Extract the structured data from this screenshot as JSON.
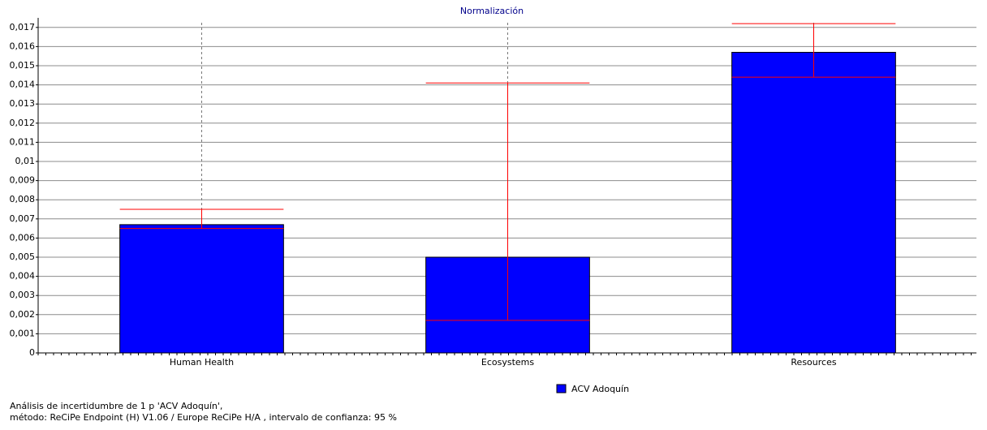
{
  "chart_data": {
    "type": "bar",
    "title": "Normalización",
    "categories": [
      "Human Health",
      "Ecosystems",
      "Resources"
    ],
    "series": [
      {
        "name": "ACV Adoquín",
        "color": "#0000ff",
        "values": [
          0.0067,
          0.005,
          0.0157
        ],
        "lower": [
          0.0065,
          0.0017,
          0.0144
        ],
        "upper": [
          0.0075,
          0.0141,
          0.0172
        ]
      }
    ],
    "error_color": "#ff0000",
    "ylim": [
      0,
      0.0175
    ],
    "yticks": [
      0,
      {
        "value": 0.001,
        "label": "0,001"
      },
      {
        "value": 0.002,
        "label": "0,002"
      },
      {
        "value": 0.003,
        "label": "0,003"
      },
      {
        "value": 0.004,
        "label": "0,004"
      },
      {
        "value": 0.005,
        "label": "0,005"
      },
      {
        "value": 0.006,
        "label": "0,006"
      },
      {
        "value": 0.007,
        "label": "0,007"
      },
      {
        "value": 0.008,
        "label": "0,008"
      },
      {
        "value": 0.009,
        "label": "0,009"
      },
      {
        "value": 0.01,
        "label": "0,01"
      },
      {
        "value": 0.011,
        "label": "0,011"
      },
      {
        "value": 0.012,
        "label": "0,012"
      },
      {
        "value": 0.013,
        "label": "0,013"
      },
      {
        "value": 0.014,
        "label": "0,014"
      },
      {
        "value": 0.015,
        "label": "0,015"
      },
      {
        "value": 0.016,
        "label": "0,016"
      },
      {
        "value": 0.017,
        "label": "0,017"
      }
    ],
    "grid": true,
    "legend": "bottom",
    "notes": [
      "Análisis de incertidumbre de  1 p 'ACV Adoquín',",
      "método: ReCiPe Endpoint (H) V1.06 / Europe ReCiPe H/A , intervalo de confianza: 95 %"
    ]
  }
}
